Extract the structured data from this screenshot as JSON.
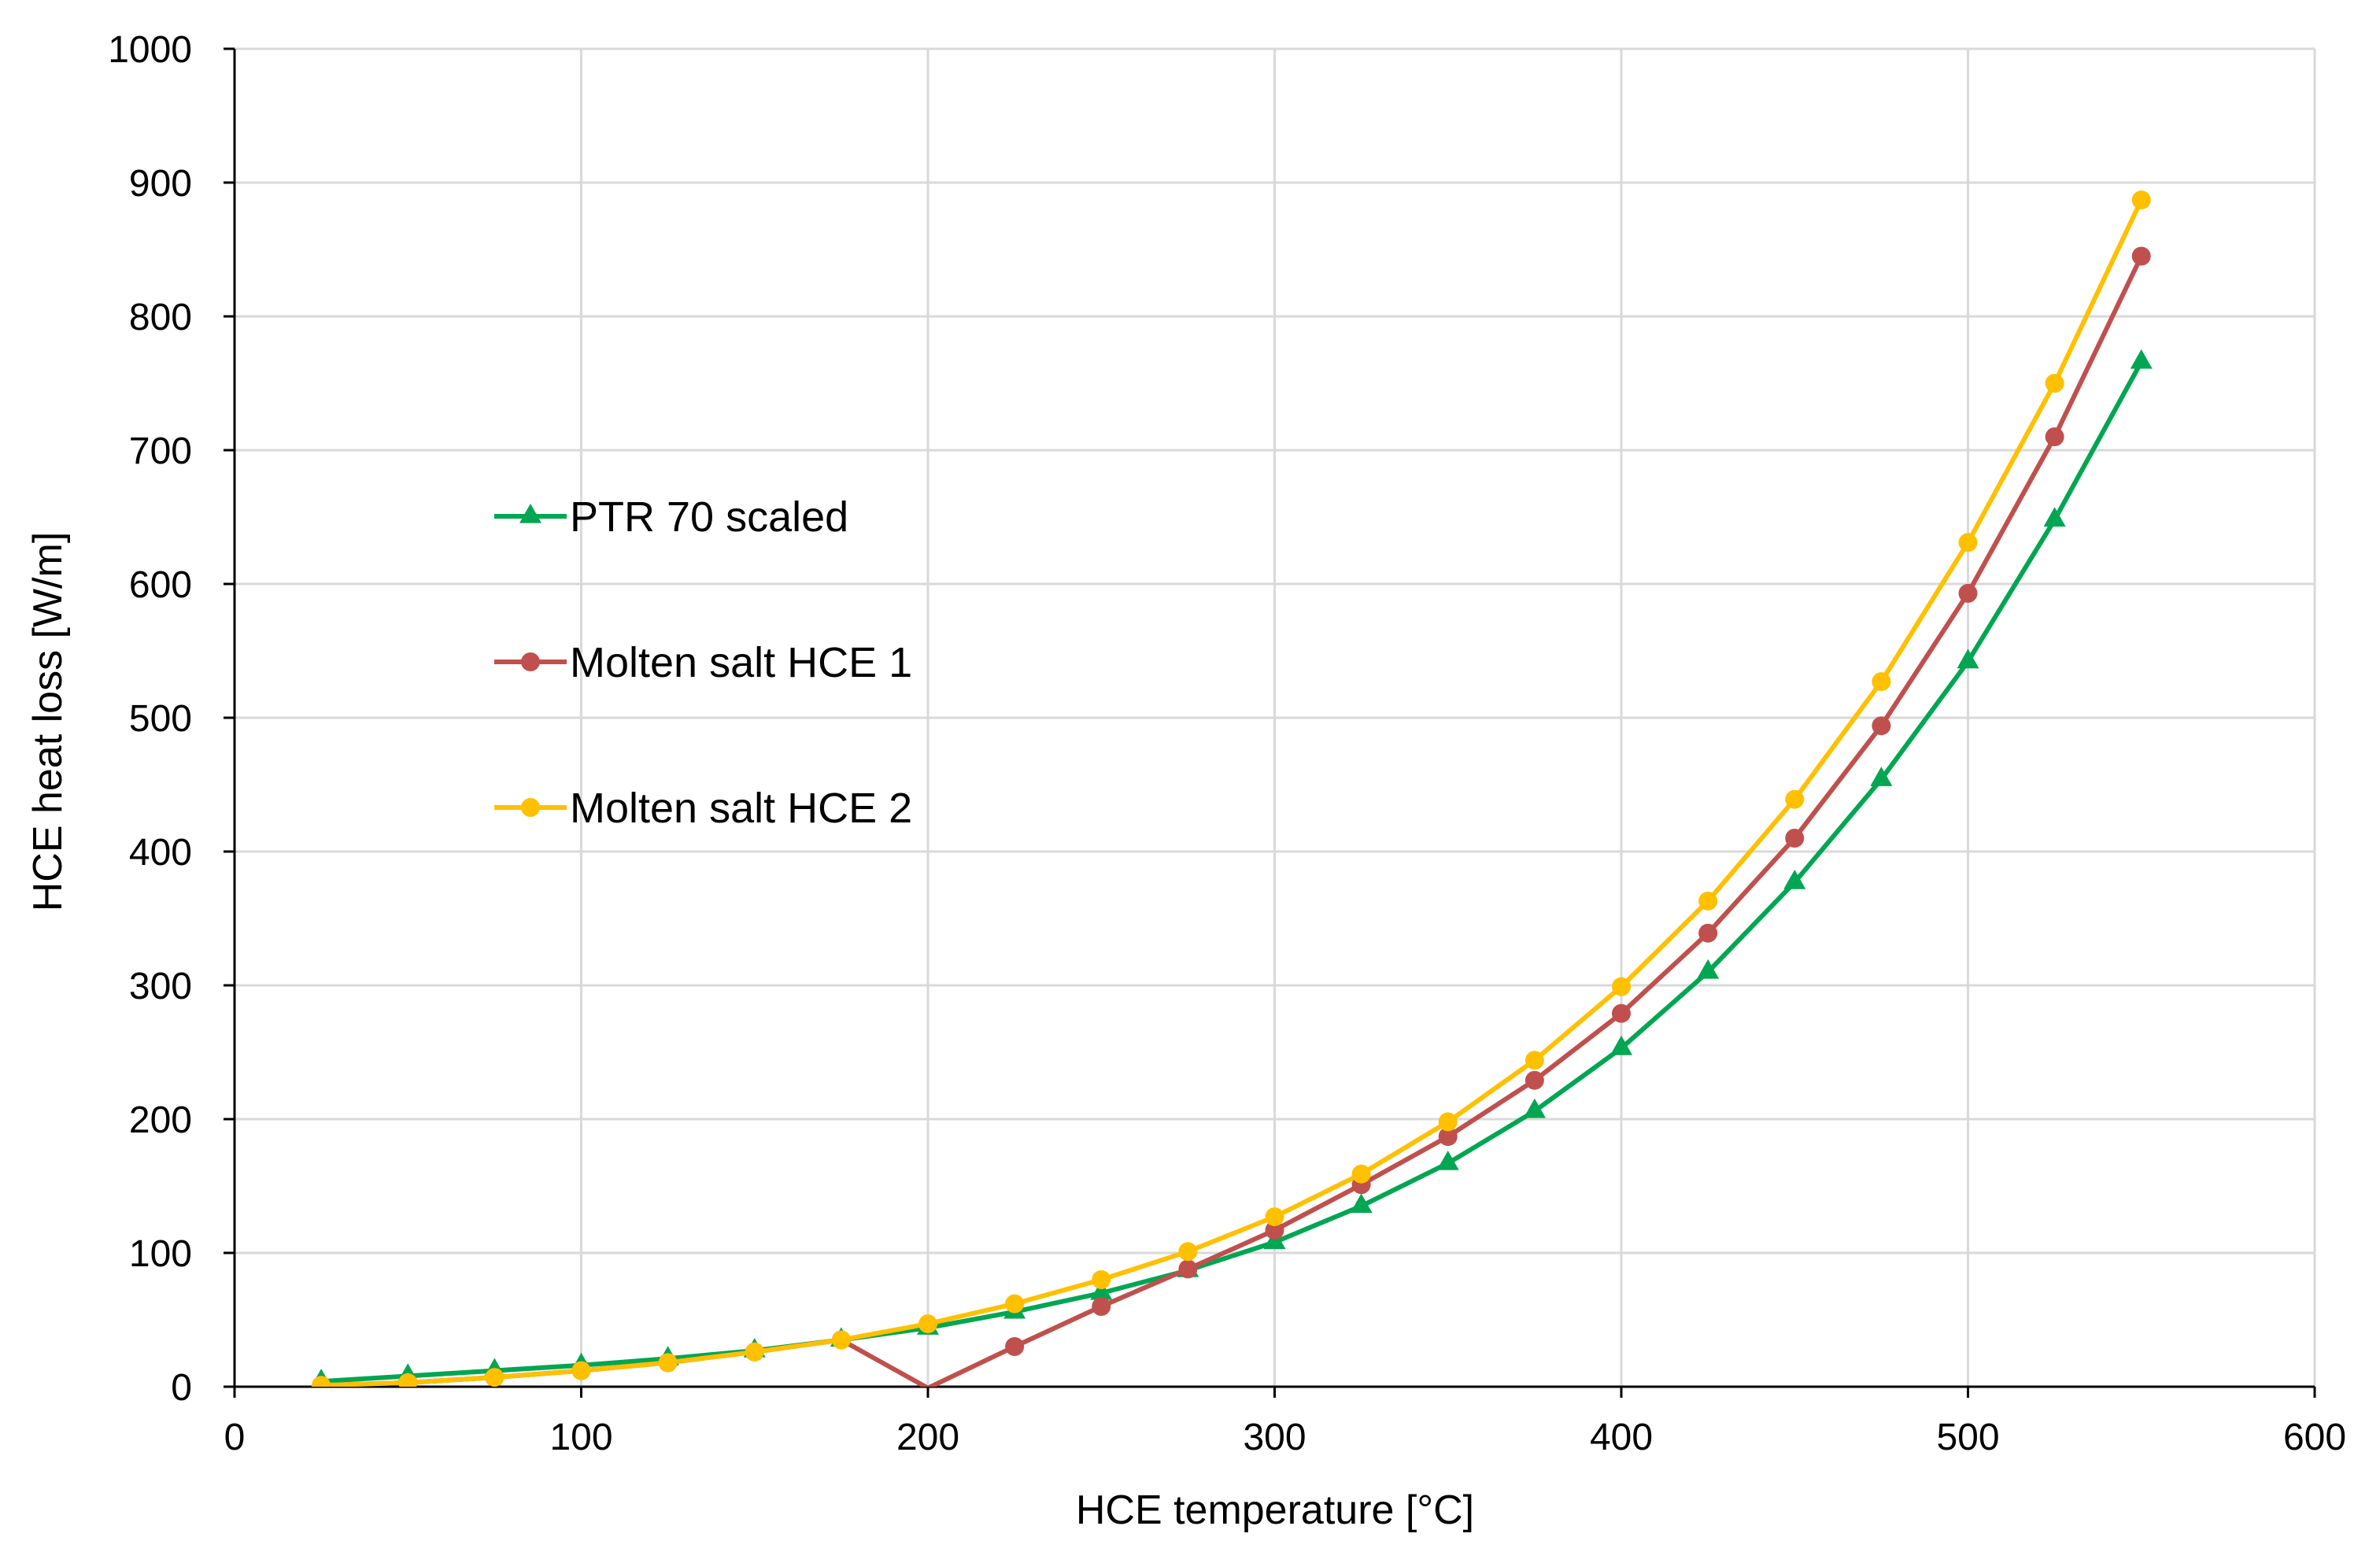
{
  "chart_data": {
    "type": "line",
    "title": "",
    "xlabel": "HCE temperature [°C]",
    "ylabel": "HCE heat loss [W/m]",
    "xlim": [
      0,
      600
    ],
    "ylim": [
      0,
      1000
    ],
    "xticks": [
      0,
      100,
      200,
      300,
      400,
      500,
      600
    ],
    "yticks": [
      0,
      100,
      200,
      300,
      400,
      500,
      600,
      700,
      800,
      900,
      1000
    ],
    "xtick_labels": [
      "0",
      "100",
      "200",
      "300",
      "400",
      "500",
      "600"
    ],
    "ytick_labels": [
      "0",
      "100",
      "200",
      "300",
      "400",
      "500",
      "600",
      "700",
      "800",
      "900",
      "1000"
    ],
    "grid": true,
    "legend_position": "middle-left",
    "series": [
      {
        "name": "PTR 70 scaled",
        "color": "#00A651",
        "marker": "triangle",
        "x": [
          25,
          50,
          75,
          100,
          125,
          150,
          175,
          200,
          225,
          250,
          275,
          300,
          325,
          350,
          375,
          400,
          425,
          450,
          475,
          500,
          525,
          550
        ],
        "y": [
          4,
          8,
          12,
          16,
          21,
          27,
          35,
          44,
          56,
          70,
          87,
          108,
          135,
          167,
          206,
          253,
          310,
          377,
          454,
          542,
          648,
          766
        ]
      },
      {
        "name": "Molten salt HCE 1",
        "color": "#C0504D",
        "marker": "circle",
        "x": [
          25,
          50,
          75,
          100,
          125,
          150,
          175,
          200,
          225,
          250,
          275,
          300,
          325,
          350,
          375,
          400,
          425,
          450,
          475,
          500,
          525,
          550
        ],
        "y": [
          1,
          3,
          7,
          12,
          18,
          26,
          35,
          -1,
          30,
          60,
          88,
          117,
          151,
          187,
          229,
          279,
          339,
          410,
          494,
          593,
          710,
          845
        ]
      },
      {
        "name": "Molten salt HCE 2",
        "color": "#FFC000",
        "marker": "circle",
        "x": [
          25,
          50,
          75,
          100,
          125,
          150,
          175,
          200,
          225,
          250,
          275,
          300,
          325,
          350,
          375,
          400,
          425,
          450,
          475,
          500,
          525,
          550
        ],
        "y": [
          1,
          3,
          7,
          12,
          18,
          26,
          35,
          47,
          62,
          80,
          101,
          127,
          159,
          198,
          244,
          299,
          363,
          439,
          527,
          631,
          750,
          887
        ]
      }
    ]
  }
}
